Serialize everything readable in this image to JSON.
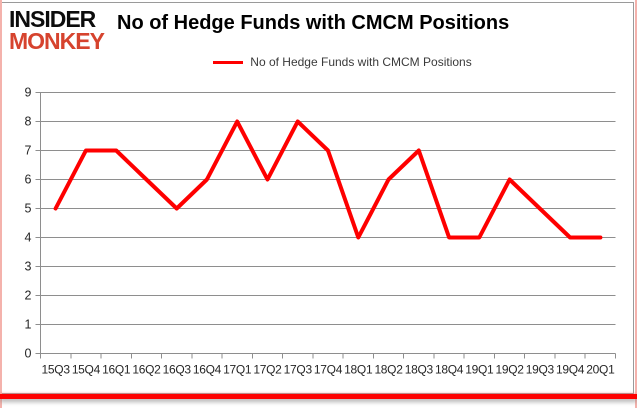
{
  "logo": {
    "line1": "INSIDER",
    "line2": "MONKEY"
  },
  "colors": {
    "line_red": "#fe0000",
    "logo_red": "#d6432e",
    "grid_gray": "#8e8e8e",
    "axis_gray": "#8e8e8e",
    "label_color": "#262626",
    "border_gray": "#9a9a9a",
    "border_pink": "#f4b2ac",
    "bottom_bar_red": "#fe0000"
  },
  "chart_data": {
    "type": "line",
    "title": "No of Hedge Funds with CMCM Positions",
    "categories": [
      "15Q3",
      "15Q4",
      "16Q1",
      "16Q2",
      "16Q3",
      "16Q4",
      "17Q1",
      "17Q2",
      "17Q3",
      "17Q4",
      "18Q1",
      "18Q2",
      "18Q3",
      "18Q4",
      "19Q1",
      "19Q2",
      "19Q3",
      "19Q4",
      "20Q1"
    ],
    "series": [
      {
        "name": "No of Hedge Funds with CMCM Positions",
        "values": [
          5,
          7,
          7,
          6,
          5,
          6,
          8,
          6,
          8,
          7,
          4,
          6,
          7,
          4,
          4,
          6,
          5,
          4,
          4
        ]
      }
    ],
    "ylim": [
      0,
      9
    ],
    "ytick_interval": 1,
    "grid": true,
    "legend_position": "top-center"
  }
}
